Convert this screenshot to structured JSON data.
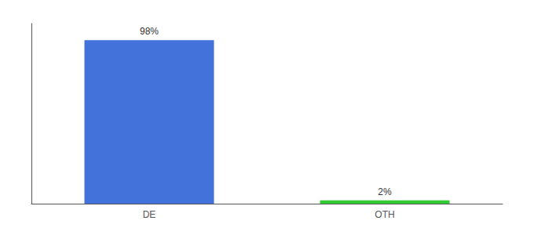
{
  "chart_data": {
    "type": "bar",
    "categories": [
      "DE",
      "OTH"
    ],
    "values": [
      98,
      2
    ],
    "value_labels": [
      "98%",
      "2%"
    ],
    "colors": [
      "#4472db",
      "#33cc33"
    ],
    "ylim": [
      0,
      108
    ],
    "data_labels": true,
    "tick_labels": "x",
    "grid": false
  }
}
